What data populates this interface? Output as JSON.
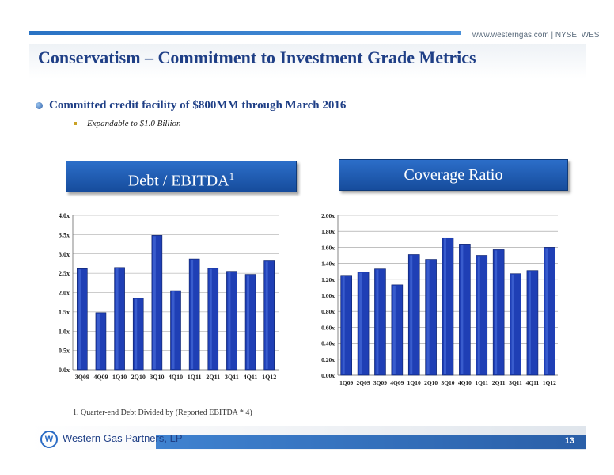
{
  "header": {
    "url": "www.westerngas.com",
    "ticker": "NYSE: WES",
    "title": "Conservatism – Commitment to Investment Grade Metrics"
  },
  "bullets": {
    "main": "Committed credit facility of $800MM through March 2016",
    "sub": "Expandable to $1.0 Billion"
  },
  "panels": {
    "left_header": "Debt / EBITDA",
    "left_header_sup": "1",
    "right_header": "Coverage Ratio"
  },
  "footnote": "1. Quarter-end Debt Divided by (Reported EBITDA * 4)",
  "footer": {
    "company": "Western Gas Partners, LP",
    "logo_letter": "W",
    "page_number": "13"
  },
  "colors": {
    "bar": "#1f3fb5",
    "title": "#1f3f86",
    "header_box": "#1d5db5"
  },
  "chart_data": [
    {
      "type": "bar",
      "categories": [
        "3Q09",
        "4Q09",
        "1Q10",
        "2Q10",
        "3Q10",
        "4Q10",
        "1Q11",
        "2Q11",
        "3Q11",
        "4Q11",
        "1Q12"
      ],
      "values": [
        2.62,
        1.48,
        2.65,
        1.85,
        3.48,
        2.05,
        2.87,
        2.63,
        2.55,
        2.47,
        2.82
      ],
      "ylim": [
        0,
        4.0
      ],
      "yticks": [
        "0.0x",
        "0.5x",
        "1.0x",
        "1.5x",
        "2.0x",
        "2.5x",
        "3.0x",
        "3.5x",
        "4.0x"
      ],
      "grid": true
    },
    {
      "type": "bar",
      "categories": [
        "1Q09",
        "2Q09",
        "3Q09",
        "4Q09",
        "1Q10",
        "2Q10",
        "3Q10",
        "4Q10",
        "1Q11",
        "2Q11",
        "3Q11",
        "4Q11",
        "1Q12"
      ],
      "values": [
        1.25,
        1.29,
        1.33,
        1.13,
        1.51,
        1.45,
        1.72,
        1.64,
        1.5,
        1.57,
        1.27,
        1.31,
        1.6
      ],
      "ylim": [
        0,
        2.0
      ],
      "yticks": [
        "0.00x",
        "0.20x",
        "0.40x",
        "0.60x",
        "0.80x",
        "1.00x",
        "1.20x",
        "1.40x",
        "1.60x",
        "1.80x",
        "2.00x"
      ],
      "grid": true
    }
  ]
}
